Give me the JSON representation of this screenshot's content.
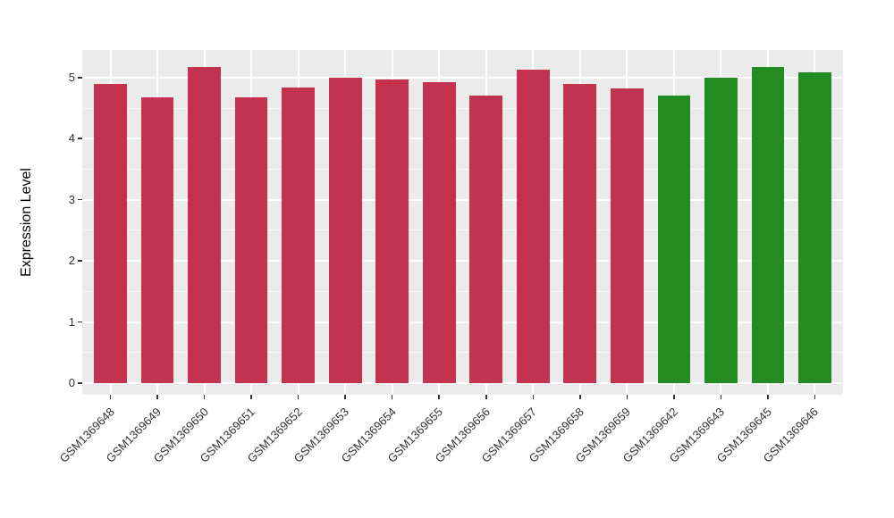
{
  "chart_data": {
    "type": "bar",
    "title": "",
    "xlabel": "",
    "ylabel": "Expression Level",
    "categories": [
      "GSM1369648",
      "GSM1369649",
      "GSM1369650",
      "GSM1369651",
      "GSM1369652",
      "GSM1369653",
      "GSM1369654",
      "GSM1369655",
      "GSM1369656",
      "GSM1369657",
      "GSM1369658",
      "GSM1369659",
      "GSM1369642",
      "GSM1369643",
      "GSM1369645",
      "GSM1369646"
    ],
    "values": [
      4.9,
      4.68,
      5.17,
      4.67,
      4.84,
      5.0,
      4.97,
      4.93,
      4.7,
      5.13,
      4.9,
      4.82,
      4.7,
      4.99,
      5.17,
      5.08
    ],
    "groups": [
      "A",
      "A",
      "A",
      "A",
      "A",
      "A",
      "A",
      "A",
      "A",
      "A",
      "A",
      "A",
      "B",
      "B",
      "B",
      "B"
    ],
    "group_colors": {
      "A": "#C3324F",
      "B": "#228B22"
    },
    "yticks": [
      0,
      1,
      2,
      3,
      4,
      5
    ],
    "ytick_labels": [
      "0",
      "1",
      "2",
      "3",
      "4",
      "5"
    ],
    "ylim": [
      -0.19,
      5.45
    ],
    "x_tick_rotation": 45,
    "grid": "on",
    "legend_position": "none",
    "panel_background": "#EBEBEB",
    "gridline_color": "#FFFFFF",
    "bar_width_fraction": 0.7
  }
}
